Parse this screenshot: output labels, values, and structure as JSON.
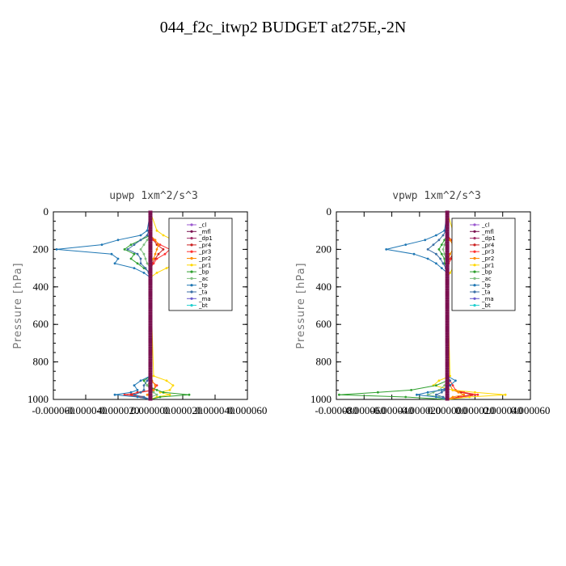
{
  "page_title": "044_f2c_itwp2  BUDGET at275E,-2N",
  "chart_data": [
    {
      "type": "line",
      "title": "upwp   1xm^2/s^3",
      "ylabel": "Pressure [hPa]",
      "xlim": [
        -6e-05,
        6e-05
      ],
      "ylim": [
        1000,
        0
      ],
      "xticks": [
        "-0.000060",
        "-0.000040",
        "-0.000020",
        "0.000000",
        "0.000020",
        "0.000040",
        "0.000060"
      ],
      "yticks": [
        "0",
        "200",
        "400",
        "600",
        "800",
        "1000"
      ],
      "grid": false,
      "legend_position": "top-right",
      "y": [
        100,
        125,
        150,
        175,
        200,
        225,
        250,
        275,
        300,
        325,
        350,
        875,
        900,
        925,
        950,
        962,
        975,
        987,
        1000
      ],
      "series": [
        {
          "name": "_cl",
          "color": "#9b59d0",
          "x": [
            0,
            0,
            0,
            0,
            0,
            0,
            0,
            0,
            0,
            0,
            0,
            0,
            0,
            0,
            0,
            0,
            0,
            0,
            0
          ]
        },
        {
          "name": "_mfl",
          "color": "#7a1050",
          "x": [
            0,
            0,
            0,
            0,
            0,
            0,
            0,
            0,
            0,
            0,
            0,
            0,
            0,
            0,
            0,
            0,
            0,
            0,
            0
          ]
        },
        {
          "name": "_dp1",
          "color": "#a0306a",
          "x": [
            0,
            0,
            0,
            0,
            0,
            0,
            0,
            0,
            0,
            0,
            0,
            0,
            0,
            0,
            0,
            0,
            0,
            0,
            0
          ]
        },
        {
          "name": "_pr4",
          "color": "#cc2020",
          "x": [
            0,
            0,
            2e-06,
            4e-06,
            8e-06,
            5e-06,
            3e-06,
            1e-06,
            0,
            0,
            0,
            0,
            0,
            0,
            2e-06,
            -8e-06,
            -1.2e-05,
            -5e-06,
            0
          ]
        },
        {
          "name": "_pr3",
          "color": "#ff3030",
          "x": [
            0,
            0,
            2e-06,
            6e-06,
            1.2e-05,
            9e-06,
            4e-06,
            2e-06,
            0,
            0,
            0,
            0,
            0,
            4e-06,
            2e-06,
            -6e-06,
            -1.6e-05,
            -6e-06,
            0
          ]
        },
        {
          "name": "_pr2",
          "color": "#ff8c00",
          "x": [
            0,
            0,
            3e-06,
            5e-06,
            4e-06,
            3e-06,
            2e-06,
            0,
            0,
            0,
            0,
            0,
            1e-06,
            3e-06,
            2e-06,
            0,
            -2e-06,
            0,
            0
          ]
        },
        {
          "name": "_pr1",
          "color": "#ffd700",
          "x": [
            4e-06,
            8e-06,
            1.4e-05,
            2.2e-05,
            3.4e-05,
            1.8e-05,
            1.2e-05,
            1.6e-05,
            1e-05,
            4e-06,
            0,
            2e-06,
            1e-05,
            1.4e-05,
            1.2e-05,
            6e-06,
            1.2e-05,
            4e-06,
            0
          ]
        },
        {
          "name": "_bp",
          "color": "#2ea02e",
          "x": [
            0,
            0,
            -6e-06,
            -1.2e-05,
            -1.6e-05,
            -1e-05,
            -1.2e-05,
            -8e-06,
            -4e-06,
            0,
            0,
            0,
            -4e-06,
            -2e-06,
            4e-06,
            8e-06,
            2.4e-05,
            6e-06,
            0
          ]
        },
        {
          "name": "_ac",
          "color": "#80c080",
          "x": [
            0,
            0,
            -2e-06,
            -4e-06,
            -6e-06,
            -4e-06,
            -3e-06,
            -2e-06,
            0,
            0,
            0,
            0,
            0,
            -2e-06,
            0,
            2e-06,
            4e-06,
            0,
            0
          ]
        },
        {
          "name": "_tp",
          "color": "#1f77b4",
          "x": [
            -2e-06,
            -6e-06,
            -2e-05,
            -3e-05,
            -5.8e-05,
            -2.4e-05,
            -2e-05,
            -2.2e-05,
            -1e-05,
            -4e-06,
            0,
            0,
            -6e-06,
            -1e-05,
            -8e-06,
            -1.2e-05,
            -2.2e-05,
            -8e-06,
            0
          ]
        },
        {
          "name": "_ta",
          "color": "#3a6ea5",
          "x": [
            -1e-06,
            -2e-06,
            -6e-06,
            -1e-05,
            -1.4e-05,
            -8e-06,
            -6e-06,
            -6e-06,
            -3e-06,
            -1e-06,
            0,
            0,
            -2e-06,
            -4e-06,
            -4e-06,
            -6e-06,
            -1e-05,
            -4e-06,
            0
          ]
        },
        {
          "name": "_ma",
          "color": "#6a5acd",
          "x": [
            0,
            0,
            0,
            0,
            0,
            0,
            0,
            0,
            0,
            0,
            0,
            0,
            0,
            0,
            0,
            0,
            0,
            0,
            0
          ]
        },
        {
          "name": "_bt",
          "color": "#20d0d0",
          "x": [
            0,
            0,
            0,
            0,
            0,
            0,
            0,
            0,
            0,
            0,
            0,
            0,
            0,
            0,
            0,
            0,
            0,
            0,
            0
          ]
        }
      ]
    },
    {
      "type": "line",
      "title": "vpwp   1xm^2/s^3",
      "ylabel": "Pressure [hPa]",
      "xlim": [
        -8e-05,
        6e-05
      ],
      "ylim": [
        1000,
        0
      ],
      "xticks": [
        "-0.000080",
        "-0.000060",
        "-0.000040",
        "-0.000020",
        "0.000000",
        "0.000020",
        "0.000040",
        "0.000060"
      ],
      "yticks": [
        "0",
        "200",
        "400",
        "600",
        "800",
        "1000"
      ],
      "grid": false,
      "legend_position": "top-right",
      "y": [
        100,
        125,
        150,
        175,
        200,
        225,
        250,
        275,
        300,
        325,
        350,
        875,
        900,
        925,
        950,
        962,
        975,
        987,
        1000
      ],
      "series": [
        {
          "name": "_cl",
          "color": "#9b59d0",
          "x": [
            0,
            0,
            0,
            0,
            0,
            0,
            0,
            0,
            0,
            0,
            0,
            0,
            0,
            0,
            0,
            0,
            0,
            0,
            0
          ]
        },
        {
          "name": "_mfl",
          "color": "#7a1050",
          "x": [
            0,
            0,
            0,
            0,
            0,
            0,
            0,
            0,
            0,
            0,
            0,
            0,
            0,
            0,
            0,
            0,
            0,
            0,
            0
          ]
        },
        {
          "name": "_dp1",
          "color": "#a0306a",
          "x": [
            0,
            0,
            0,
            0,
            0,
            0,
            0,
            0,
            0,
            0,
            0,
            0,
            0,
            0,
            0,
            0,
            0,
            0,
            0
          ]
        },
        {
          "name": "_pr4",
          "color": "#cc2020",
          "x": [
            0,
            0,
            2e-06,
            4e-06,
            6e-06,
            4e-06,
            2e-06,
            0,
            0,
            0,
            0,
            0,
            0,
            2e-06,
            4e-06,
            1e-05,
            1.8e-05,
            8e-06,
            0
          ]
        },
        {
          "name": "_pr3",
          "color": "#ff3030",
          "x": [
            0,
            0,
            3e-06,
            6e-06,
            8e-06,
            5e-06,
            3e-06,
            1e-06,
            0,
            0,
            0,
            0,
            2e-06,
            4e-06,
            6e-06,
            1.2e-05,
            2.2e-05,
            1e-05,
            0
          ]
        },
        {
          "name": "_pr2",
          "color": "#ff8c00",
          "x": [
            0,
            0,
            2e-06,
            4e-06,
            4e-06,
            2e-06,
            1e-06,
            0,
            0,
            0,
            0,
            0,
            1e-06,
            2e-06,
            4e-06,
            8e-06,
            1.2e-05,
            4e-06,
            0
          ]
        },
        {
          "name": "_pr1",
          "color": "#ffd700",
          "x": [
            4e-06,
            8e-06,
            1.4e-05,
            2.4e-05,
            4e-05,
            2e-05,
            1e-05,
            6e-06,
            4e-06,
            2e-06,
            0,
            2e-06,
            -6e-06,
            -1e-05,
            4e-06,
            2e-05,
            4.2e-05,
            1.6e-05,
            0
          ]
        },
        {
          "name": "_bp",
          "color": "#2ea02e",
          "x": [
            0,
            0,
            -2e-06,
            -4e-06,
            -6e-06,
            -4e-06,
            -2e-06,
            -2e-06,
            0,
            0,
            0,
            0,
            0,
            -8e-06,
            -2.6e-05,
            -5e-05,
            -7.8e-05,
            -3e-05,
            0
          ]
        },
        {
          "name": "_ac",
          "color": "#80c080",
          "x": [
            0,
            0,
            -1e-06,
            -2e-06,
            -3e-06,
            -2e-06,
            -1e-06,
            0,
            0,
            0,
            0,
            0,
            0,
            -2e-06,
            -6e-06,
            -1e-05,
            -1.4e-05,
            -6e-06,
            0
          ]
        },
        {
          "name": "_tp",
          "color": "#1f77b4",
          "x": [
            -2e-06,
            -8e-06,
            -1.6e-05,
            -3e-05,
            -4.4e-05,
            -2.4e-05,
            -1.4e-05,
            -8e-06,
            -4e-06,
            0,
            0,
            0,
            6e-06,
            2e-06,
            -4e-06,
            -1.4e-05,
            -2.2e-05,
            -8e-06,
            0
          ]
        },
        {
          "name": "_ta",
          "color": "#3a6ea5",
          "x": [
            -1e-06,
            -3e-06,
            -6e-06,
            -1e-05,
            -1.4e-05,
            -8e-06,
            -5e-06,
            -3e-06,
            -1e-06,
            0,
            0,
            0,
            2e-06,
            0,
            -2e-06,
            -4e-06,
            -8e-06,
            -3e-06,
            0
          ]
        },
        {
          "name": "_ma",
          "color": "#6a5acd",
          "x": [
            0,
            0,
            0,
            0,
            0,
            0,
            0,
            0,
            0,
            0,
            0,
            0,
            0,
            0,
            0,
            0,
            0,
            0,
            0
          ]
        },
        {
          "name": "_bt",
          "color": "#20d0d0",
          "x": [
            0,
            0,
            0,
            0,
            0,
            0,
            0,
            0,
            0,
            0,
            0,
            0,
            0,
            0,
            0,
            0,
            0,
            0,
            0
          ]
        }
      ]
    }
  ]
}
